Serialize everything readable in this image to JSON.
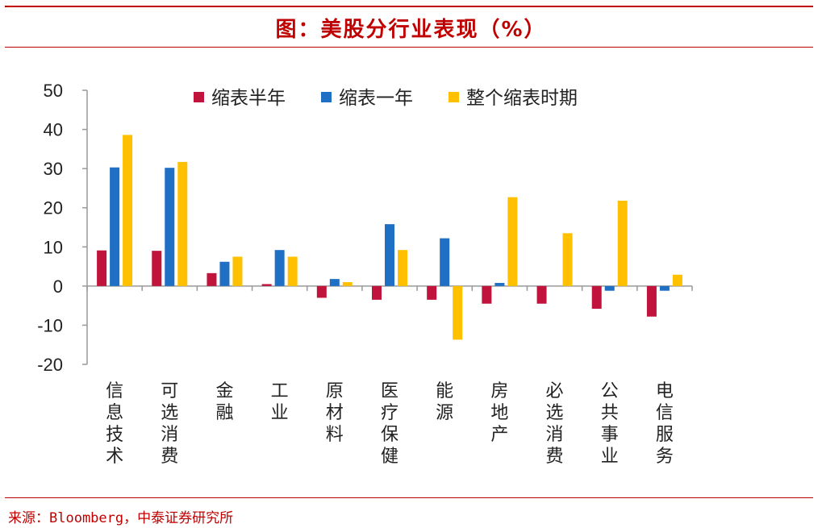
{
  "page": {
    "title": "图：美股分行业表现（%）",
    "source": "来源：Bloomberg，中泰证券研究所"
  },
  "chart_data": {
    "type": "bar",
    "title": "图：美股分行业表现（%）",
    "xlabel": "",
    "ylabel": "",
    "ylim": [
      -20,
      50
    ],
    "yticks": [
      50,
      40,
      30,
      20,
      10,
      0,
      -10,
      -20
    ],
    "legend_position": "top",
    "categories": [
      "信息技术",
      "可选消费",
      "金融",
      "工业",
      "原材料",
      "医疗保健",
      "能源",
      "房地产",
      "必选消费",
      "公共事业",
      "电信服务"
    ],
    "series": [
      {
        "name": "缩表半年",
        "color": "#c0143c",
        "values": [
          9.1,
          9.0,
          3.3,
          0.5,
          -3.0,
          -3.5,
          -3.5,
          -4.5,
          -4.5,
          -5.8,
          -7.8
        ]
      },
      {
        "name": "缩表一年",
        "color": "#1f6fc5",
        "values": [
          30.3,
          30.2,
          6.2,
          9.2,
          1.8,
          15.8,
          12.2,
          0.8,
          0.0,
          -1.2,
          -1.2
        ]
      },
      {
        "name": "整个缩表时期",
        "color": "#ffc000",
        "values": [
          38.6,
          31.7,
          7.5,
          7.5,
          1.0,
          9.2,
          -13.7,
          22.7,
          13.5,
          21.8,
          2.9
        ]
      }
    ]
  }
}
